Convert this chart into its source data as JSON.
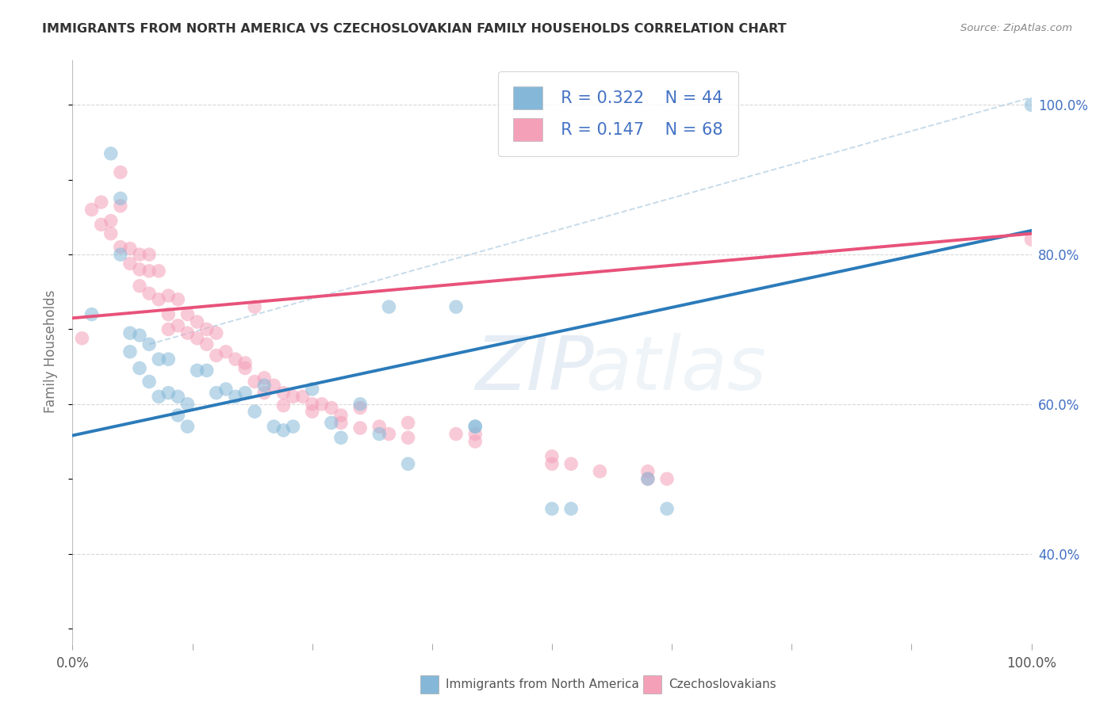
{
  "title": "IMMIGRANTS FROM NORTH AMERICA VS CZECHOSLOVAKIAN FAMILY HOUSEHOLDS CORRELATION CHART",
  "source": "Source: ZipAtlas.com",
  "ylabel": "Family Households",
  "legend_blue_r": "R = 0.322",
  "legend_blue_n": "N = 44",
  "legend_pink_r": "R = 0.147",
  "legend_pink_n": "N = 68",
  "legend_blue_label": "Immigrants from North America",
  "legend_pink_label": "Czechoslovakians",
  "blue_color": "#85b8d8",
  "pink_color": "#f4a0b8",
  "blue_line_color": "#2b7bba",
  "pink_line_color": "#e8527a",
  "blue_dash_color": "#b0cce0",
  "watermark_zip": "ZIP",
  "watermark_atlas": "atlas",
  "background_color": "#ffffff",
  "grid_color": "#d8d8d8",
  "right_tick_color": "#4472c4",
  "title_color": "#333333",
  "axis_label_color": "#777777",
  "blue_scatter_x": [
    0.02,
    0.04,
    0.05,
    0.05,
    0.06,
    0.06,
    0.07,
    0.07,
    0.08,
    0.08,
    0.09,
    0.09,
    0.1,
    0.1,
    0.11,
    0.11,
    0.12,
    0.12,
    0.13,
    0.14,
    0.15,
    0.16,
    0.17,
    0.18,
    0.19,
    0.2,
    0.21,
    0.22,
    0.23,
    0.25,
    0.27,
    0.28,
    0.3,
    0.32,
    0.33,
    0.35,
    0.4,
    0.42,
    0.42,
    0.5,
    0.52,
    0.6,
    0.62,
    1.0
  ],
  "blue_scatter_y": [
    0.72,
    0.935,
    0.875,
    0.8,
    0.695,
    0.67,
    0.692,
    0.648,
    0.68,
    0.63,
    0.66,
    0.61,
    0.66,
    0.615,
    0.61,
    0.585,
    0.6,
    0.57,
    0.645,
    0.645,
    0.615,
    0.62,
    0.61,
    0.615,
    0.59,
    0.625,
    0.57,
    0.565,
    0.57,
    0.62,
    0.575,
    0.555,
    0.6,
    0.56,
    0.73,
    0.52,
    0.73,
    0.57,
    0.57,
    0.46,
    0.46,
    0.5,
    0.46,
    1.0
  ],
  "pink_scatter_x": [
    0.01,
    0.02,
    0.03,
    0.03,
    0.04,
    0.04,
    0.05,
    0.05,
    0.05,
    0.06,
    0.06,
    0.07,
    0.07,
    0.07,
    0.08,
    0.08,
    0.08,
    0.09,
    0.09,
    0.1,
    0.1,
    0.1,
    0.11,
    0.11,
    0.12,
    0.12,
    0.13,
    0.13,
    0.14,
    0.14,
    0.15,
    0.15,
    0.16,
    0.17,
    0.18,
    0.18,
    0.19,
    0.19,
    0.2,
    0.2,
    0.21,
    0.22,
    0.22,
    0.23,
    0.24,
    0.25,
    0.25,
    0.26,
    0.27,
    0.28,
    0.28,
    0.3,
    0.3,
    0.32,
    0.33,
    0.35,
    0.35,
    0.4,
    0.42,
    0.42,
    0.5,
    0.5,
    0.52,
    0.55,
    0.6,
    0.6,
    0.62,
    1.0
  ],
  "pink_scatter_y": [
    0.688,
    0.86,
    0.87,
    0.84,
    0.845,
    0.828,
    0.91,
    0.865,
    0.81,
    0.808,
    0.788,
    0.8,
    0.78,
    0.758,
    0.8,
    0.778,
    0.748,
    0.778,
    0.74,
    0.745,
    0.72,
    0.7,
    0.74,
    0.705,
    0.72,
    0.695,
    0.71,
    0.688,
    0.7,
    0.68,
    0.695,
    0.665,
    0.67,
    0.66,
    0.655,
    0.648,
    0.73,
    0.63,
    0.635,
    0.615,
    0.625,
    0.615,
    0.598,
    0.61,
    0.61,
    0.6,
    0.59,
    0.6,
    0.595,
    0.585,
    0.575,
    0.595,
    0.568,
    0.57,
    0.56,
    0.575,
    0.555,
    0.56,
    0.56,
    0.55,
    0.53,
    0.52,
    0.52,
    0.51,
    0.51,
    0.5,
    0.5,
    0.82
  ],
  "xlim": [
    0.0,
    1.0
  ],
  "ylim": [
    0.28,
    1.06
  ],
  "yticks_right": [
    0.4,
    0.6,
    0.8,
    1.0
  ],
  "ytick_labels_right": [
    "40.0%",
    "60.0%",
    "80.0%",
    "100.0%"
  ],
  "xtick_positions": [
    0.0,
    0.125,
    0.25,
    0.375,
    0.5,
    0.625,
    0.75,
    0.875,
    1.0
  ],
  "blue_regr": [
    0.558,
    0.832
  ],
  "pink_regr": [
    0.715,
    0.828
  ]
}
